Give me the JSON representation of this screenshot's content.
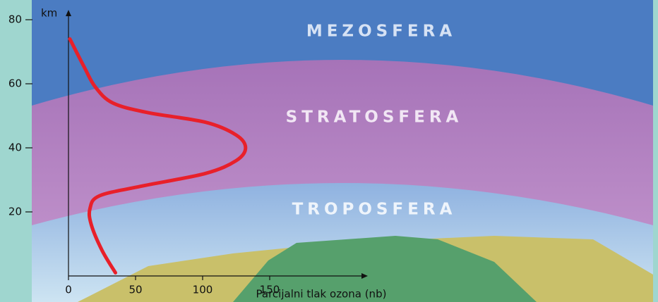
{
  "chart_data": {
    "type": "line",
    "x_label": "Parcijalni tlak ozona (nb)",
    "y_label": "km",
    "annotations": [
      "MEZOSFERA",
      "STRATOSFERA",
      "TROPOSFERA"
    ],
    "xlim": [
      0,
      220
    ],
    "xticks": [
      0,
      50,
      100,
      150
    ],
    "ylim": [
      0,
      80
    ],
    "yticks": [
      20,
      40,
      60,
      80
    ],
    "x": [
      35,
      25,
      17,
      16,
      23,
      54,
      102,
      125,
      132,
      125,
      102,
      59,
      33,
      20,
      12,
      1
    ],
    "series": [
      {
        "color": "#e8202a",
        "values": [
          1,
          8,
          16,
          21,
          25,
          28,
          32,
          36,
          40,
          44,
          48,
          51,
          54,
          59,
          65,
          74
        ]
      }
    ]
  }
}
